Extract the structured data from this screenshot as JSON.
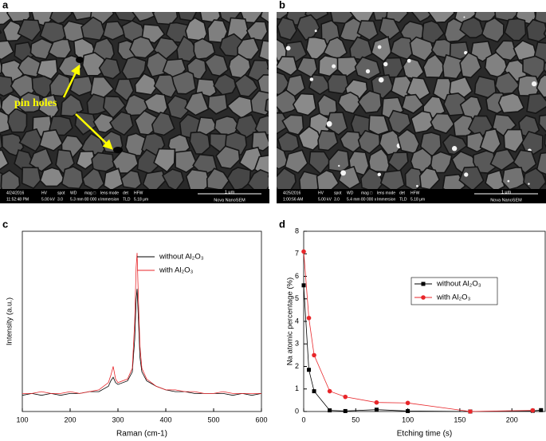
{
  "panel_labels": [
    "a",
    "b",
    "c",
    "d"
  ],
  "sem_images": [
    {
      "annotation": "pin holes",
      "info": [
        [
          "4/24/2016",
          "11:52:48 PM"
        ],
        [
          "HV",
          "5.00 kV"
        ],
        [
          "spot",
          "3.0"
        ],
        [
          "WD",
          "5.3 mm"
        ],
        [
          "mag □",
          "80 000 x"
        ],
        [
          "lens mode",
          "Immersion"
        ],
        [
          "det",
          "TLD"
        ],
        [
          "HFW",
          "5.18 μm"
        ]
      ],
      "scale": "1 μm",
      "instrument": "Nova NanoSEM"
    },
    {
      "info": [
        [
          "4/25/2016",
          "1:00:56 AM"
        ],
        [
          "HV",
          "5.00 kV"
        ],
        [
          "spot",
          "3.0"
        ],
        [
          "WD",
          "5.4 mm"
        ],
        [
          "mag □",
          "80 000 x"
        ],
        [
          "lens mode",
          "Immersion"
        ],
        [
          "det",
          "TLD"
        ],
        [
          "HFW",
          "5.18 μm"
        ]
      ],
      "scale": "1 μm",
      "instrument": "Nova NanoSEM"
    }
  ],
  "chart_data": [
    {
      "type": "line",
      "x_label": "Raman (cm-1)",
      "y_label": "Intensity (a.u.)",
      "x": [
        100,
        120,
        140,
        160,
        180,
        200,
        220,
        240,
        260,
        280,
        285,
        290,
        295,
        300,
        320,
        330,
        335,
        338,
        340,
        343,
        346,
        350,
        360,
        380,
        400,
        420,
        440,
        460,
        480,
        500,
        520,
        540,
        560,
        580,
        600
      ],
      "xlim": [
        100,
        600
      ],
      "xticks": [
        100,
        200,
        300,
        400,
        500,
        600
      ],
      "ylim": [
        0,
        100
      ],
      "series": [
        {
          "name": "without Al₂O₃",
          "color": "#000000",
          "values": [
            9,
            10,
            9,
            10,
            9,
            10,
            10,
            11,
            11,
            14,
            17,
            19,
            16,
            15,
            17,
            22,
            40,
            62,
            68,
            50,
            30,
            22,
            17,
            14,
            12,
            11,
            11,
            10,
            10,
            10,
            10,
            9,
            10,
            9,
            10
          ]
        },
        {
          "name": "with Al₂O₃",
          "color": "#e8262a",
          "values": [
            10,
            10,
            11,
            10,
            10,
            11,
            10,
            11,
            12,
            16,
            20,
            25,
            18,
            16,
            18,
            24,
            50,
            80,
            88,
            60,
            36,
            24,
            18,
            14,
            12,
            12,
            11,
            11,
            10,
            10,
            11,
            10,
            10,
            10,
            10
          ]
        }
      ]
    },
    {
      "type": "scatter-line",
      "x_label": "Etching time (s)",
      "y_label": "Na atomic percentage (%)",
      "xlim": [
        0,
        232
      ],
      "xticks": [
        0,
        50,
        100,
        150,
        200
      ],
      "ylim": [
        0,
        8
      ],
      "yticks": [
        0,
        1,
        2,
        3,
        4,
        5,
        6,
        7,
        8
      ],
      "series": [
        {
          "name": "without Al₂O₃",
          "color": "#000000",
          "marker": "square",
          "x": [
            0,
            5,
            10,
            25,
            40,
            70,
            100,
            160,
            220,
            228
          ],
          "values": [
            5.6,
            1.85,
            0.9,
            0.05,
            0.02,
            0.08,
            0.02,
            0,
            0.03,
            0.06
          ]
        },
        {
          "name": "with Al₂O₃",
          "color": "#e8262a",
          "marker": "circle",
          "x": [
            0,
            5,
            10,
            25,
            40,
            70,
            100,
            160,
            220
          ],
          "values": [
            7.1,
            4.15,
            2.5,
            0.9,
            0.65,
            0.4,
            0.38,
            0,
            0.05
          ]
        }
      ]
    }
  ]
}
